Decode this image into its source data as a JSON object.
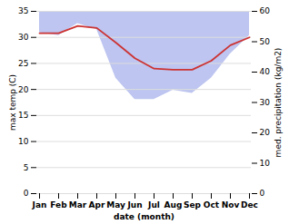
{
  "chart_data": {
    "type": "line",
    "xlabel": "date (month)",
    "ylabel": "max temp (C)",
    "y2label": "med. precipitation (kg/m2)",
    "categories": [
      "Jan",
      "Feb",
      "Mar",
      "Apr",
      "May",
      "Jun",
      "Jul",
      "Aug",
      "Sep",
      "Oct",
      "Nov",
      "Dec"
    ],
    "series": [
      {
        "type": "line",
        "color": "#cc3333",
        "values": [
          30.8,
          30.8,
          32.2,
          31.8,
          29.0,
          26.0,
          24.0,
          23.8,
          23.8,
          25.5,
          28.5,
          30.0
        ]
      },
      {
        "type": "area",
        "axis": "y2",
        "color": "#bdc5f0",
        "values": [
          53,
          52,
          56,
          54,
          38,
          31,
          31,
          34,
          33,
          38,
          46,
          52
        ]
      }
    ],
    "ylim": [
      0,
      35
    ],
    "yticks": [
      0,
      5,
      10,
      15,
      20,
      25,
      30,
      35
    ],
    "y2lim": [
      0,
      60
    ],
    "y2ticks": [
      0,
      10,
      20,
      30,
      40,
      50,
      60
    ],
    "grid": true
  }
}
